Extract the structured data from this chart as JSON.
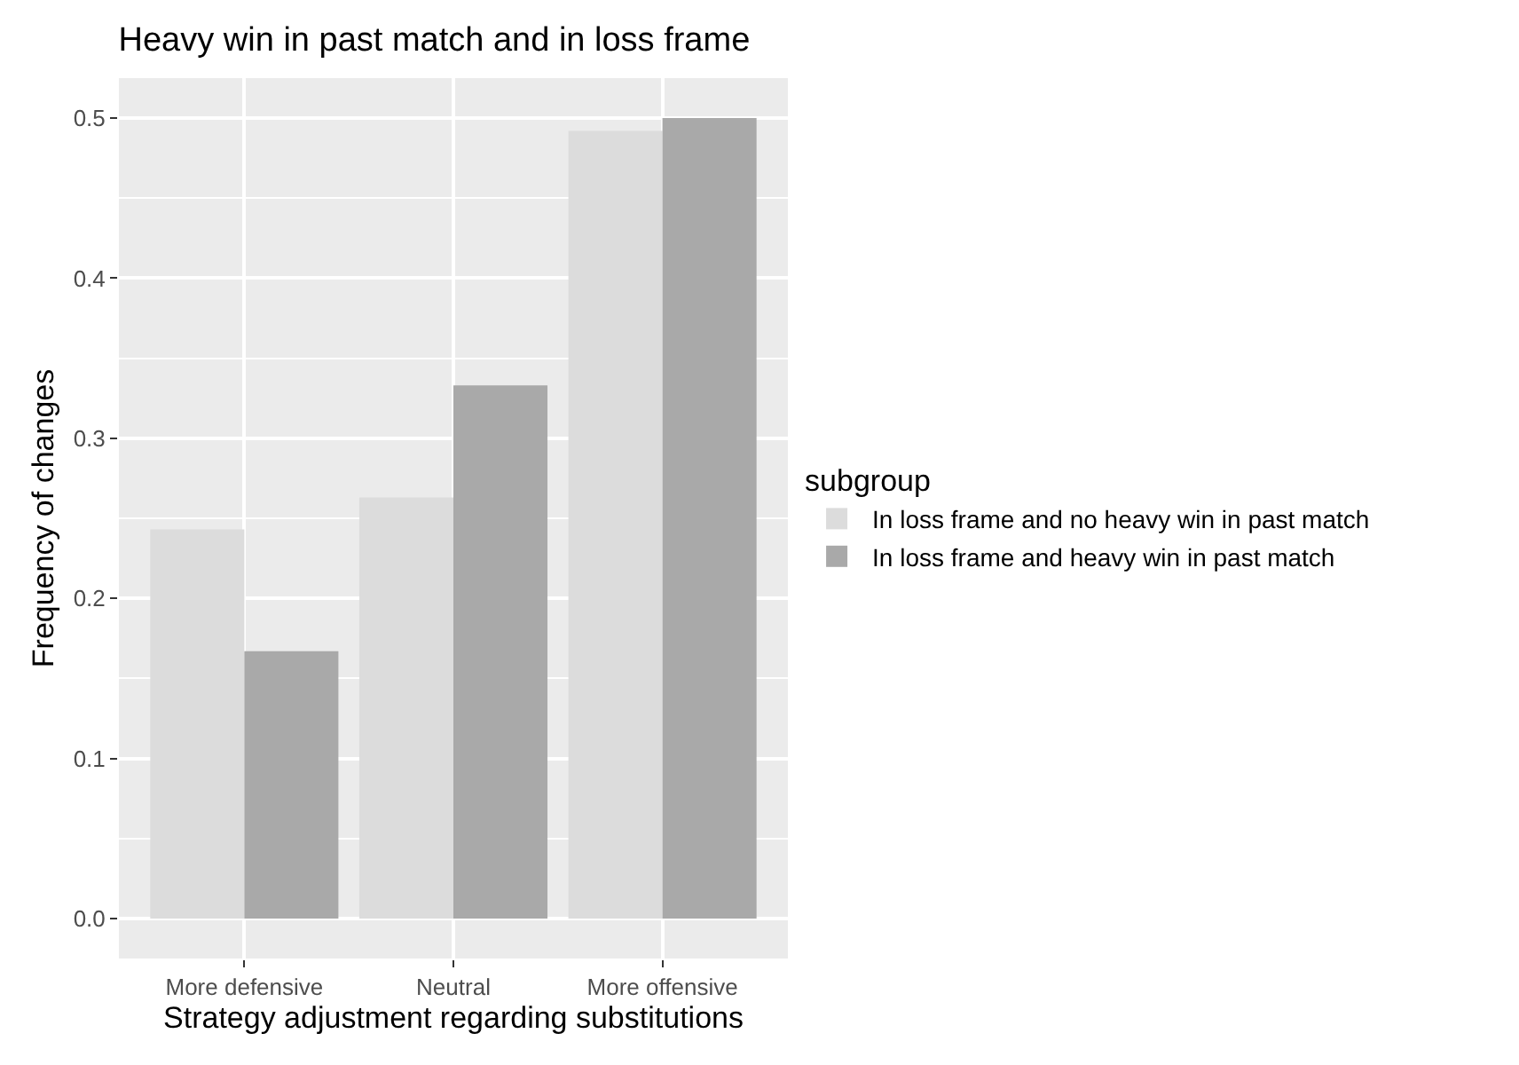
{
  "chart_data": {
    "type": "bar",
    "title": "Heavy win in past match and in loss frame",
    "xlabel": "Strategy adjustment regarding substitutions",
    "ylabel": "Frequency of changes",
    "legend_title": "subgroup",
    "categories": [
      "More defensive",
      "Neutral",
      "More offensive"
    ],
    "series": [
      {
        "name": "In loss frame and no heavy win in past match",
        "color": "#dcdcdc",
        "values": [
          0.243,
          0.263,
          0.492
        ]
      },
      {
        "name": "In loss frame and heavy win in past match",
        "color": "#a9a9a9",
        "values": [
          0.167,
          0.333,
          0.5
        ]
      }
    ],
    "ylim": [
      -0.025,
      0.525
    ],
    "yticks": [
      {
        "value": 0,
        "label": "0.0"
      },
      0.1,
      0.2,
      0.3,
      0.4,
      0.5
    ],
    "grid": true,
    "legend": "right"
  }
}
